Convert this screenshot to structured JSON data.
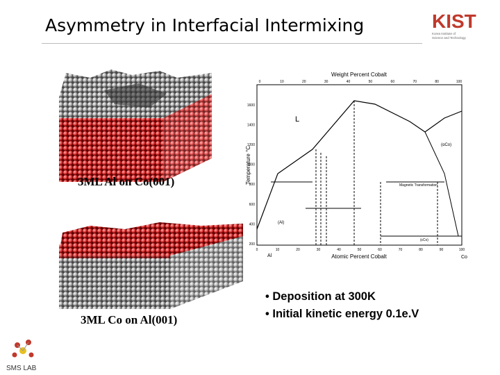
{
  "header": {
    "title": "Asymmetry in Interfacial Intermixing",
    "logo": "KIST",
    "logo_subtitle": [
      "Korea Institute of",
      "Science and Technology"
    ]
  },
  "panels": [
    {
      "label": "3ML Al on Co(001)"
    },
    {
      "label": "3ML Co on Al(001)"
    }
  ],
  "phase_diagram": {
    "top_axis_title": "Weight Percent Cobalt",
    "bottom_axis_title": "Atomic Percent Cobalt",
    "y_axis_title": "Temperature °C",
    "top_ticks": [
      "0",
      "10",
      "20",
      "30",
      "40",
      "50",
      "60",
      "70",
      "80",
      "100"
    ],
    "bottom_ticks": [
      "0",
      "10",
      "20",
      "30",
      "40",
      "50",
      "60",
      "70",
      "80",
      "90",
      "100"
    ],
    "y_ticks": [
      "200",
      "400",
      "600",
      "800",
      "1000",
      "1200",
      "1400",
      "1600"
    ],
    "left_element": "Al",
    "right_element": "Co",
    "regions": [
      "L",
      "(αCo)",
      "(Al)",
      "(εCo)",
      "Magnetic Transformation"
    ]
  },
  "bullets": [
    "• Deposition at 300K",
    "• Initial kinetic energy 0.1e.V"
  ],
  "footer": {
    "lab": "SMS LAB"
  }
}
